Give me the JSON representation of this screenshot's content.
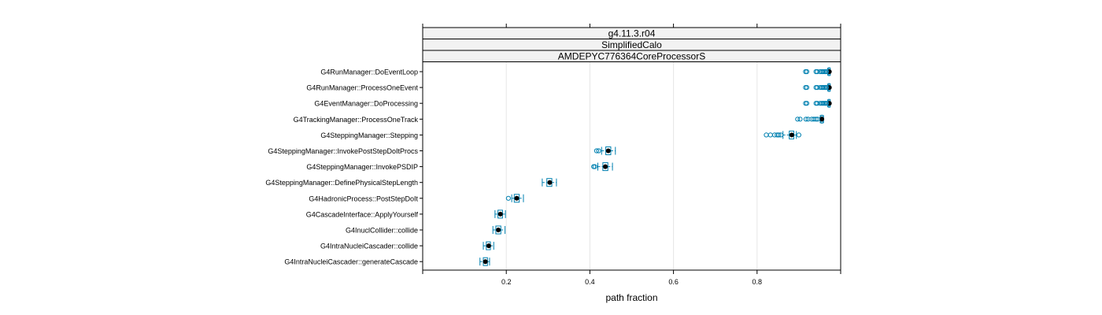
{
  "chart_data": {
    "type": "boxplot",
    "xlabel": "path fraction",
    "xlim": [
      0.0,
      1.0
    ],
    "x_ticks": [
      0.2,
      0.4,
      0.6,
      0.8
    ],
    "grid": true,
    "strips": [
      "g4.11.3.r04",
      "SimplifiedCalo",
      "AMDEPYC776364CoreProcessorS"
    ],
    "colors": {
      "box": "#0080b0",
      "median": "#000000",
      "grid": "#e6e6e6",
      "strip_bg": "#f2f2f2"
    },
    "categories": [
      "G4RunManager::DoEventLoop",
      "G4RunManager::ProcessOneEvent",
      "G4EventManager::DoProcessing",
      "G4TrackingManager::ProcessOneTrack",
      "G4SteppingManager::Stepping",
      "G4SteppingManager::InvokePostStepDoItProcs",
      "G4SteppingManager::InvokePSDIP",
      "G4SteppingManager::DefinePhysicalStepLength",
      "G4HadronicProcess::PostStepDoIt",
      "G4CascadeInterface::ApplyYourself",
      "G4InuclCollider::collide",
      "G4IntraNucleiCascader::collide",
      "G4IntraNucleiCascader::generateCascade"
    ],
    "boxes": [
      {
        "wlo": 0.969,
        "q1": 0.971,
        "med": 0.973,
        "q3": 0.974,
        "whi": 0.975,
        "outliers": [
          0.916,
          0.919,
          0.941,
          0.944,
          0.951,
          0.955,
          0.958,
          0.961,
          0.964,
          0.966
        ]
      },
      {
        "wlo": 0.969,
        "q1": 0.971,
        "med": 0.973,
        "q3": 0.974,
        "whi": 0.975,
        "outliers": [
          0.916,
          0.919,
          0.941,
          0.944,
          0.951,
          0.955,
          0.958,
          0.961,
          0.964,
          0.966
        ]
      },
      {
        "wlo": 0.969,
        "q1": 0.971,
        "med": 0.973,
        "q3": 0.974,
        "whi": 0.975,
        "outliers": [
          0.916,
          0.919,
          0.941,
          0.944,
          0.951,
          0.955,
          0.958,
          0.961,
          0.964,
          0.966
        ]
      },
      {
        "wlo": 0.951,
        "q1": 0.953,
        "med": 0.955,
        "q3": 0.957,
        "whi": 0.959,
        "outliers": [
          0.897,
          0.903,
          0.917,
          0.922,
          0.931,
          0.936,
          0.941,
          0.945
        ]
      },
      {
        "wlo": 0.862,
        "q1": 0.877,
        "med": 0.883,
        "q3": 0.888,
        "whi": 0.894,
        "outliers": [
          0.822,
          0.832,
          0.842,
          0.848,
          0.852,
          0.857,
          0.9
        ]
      },
      {
        "wlo": 0.428,
        "q1": 0.438,
        "med": 0.444,
        "q3": 0.45,
        "whi": 0.461,
        "outliers": [
          0.416,
          0.421
        ]
      },
      {
        "wlo": 0.419,
        "q1": 0.431,
        "med": 0.437,
        "q3": 0.443,
        "whi": 0.454,
        "outliers": [
          0.409,
          0.412
        ]
      },
      {
        "wlo": 0.286,
        "q1": 0.297,
        "med": 0.304,
        "q3": 0.309,
        "whi": 0.32,
        "outliers": []
      },
      {
        "wlo": 0.213,
        "q1": 0.219,
        "med": 0.225,
        "q3": 0.231,
        "whi": 0.241,
        "outliers": [
          0.205
        ]
      },
      {
        "wlo": 0.173,
        "q1": 0.18,
        "med": 0.186,
        "q3": 0.191,
        "whi": 0.198,
        "outliers": []
      },
      {
        "wlo": 0.168,
        "q1": 0.175,
        "med": 0.181,
        "q3": 0.187,
        "whi": 0.197,
        "outliers": []
      },
      {
        "wlo": 0.145,
        "q1": 0.152,
        "med": 0.158,
        "q3": 0.162,
        "whi": 0.17,
        "outliers": []
      },
      {
        "wlo": 0.137,
        "q1": 0.145,
        "med": 0.15,
        "q3": 0.155,
        "whi": 0.16,
        "outliers": []
      }
    ]
  }
}
